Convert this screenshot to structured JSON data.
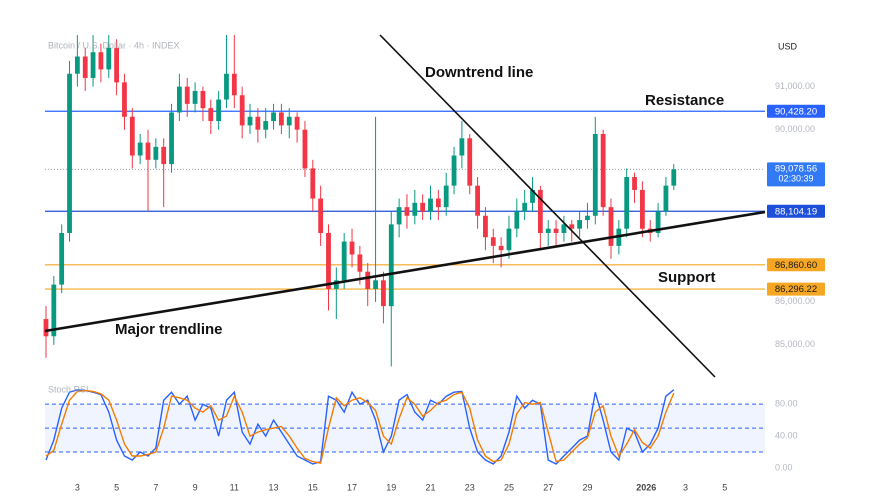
{
  "chart_data": [
    {
      "type": "candlestick",
      "title": "Bitcoin / U.S. Dollar · 4h · INDEX",
      "y_axis_label": "USD",
      "annotations": [
        "Downtrend line",
        "Resistance",
        "Support",
        "Major trendline"
      ],
      "up_color": "#089981",
      "down_color": "#f23645",
      "grid": false,
      "x": [
        1.4,
        1.8,
        2.2,
        2.6,
        3,
        3.4,
        3.8,
        4.2,
        4.6,
        5,
        5.4,
        5.8,
        6.2,
        6.6,
        7,
        7.4,
        7.8,
        8.2,
        8.6,
        9,
        9.4,
        9.8,
        10.2,
        10.6,
        11,
        11.4,
        11.8,
        12.2,
        12.6,
        13,
        13.4,
        13.8,
        14.2,
        14.6,
        15,
        15.4,
        15.8,
        16.2,
        16.6,
        17,
        17.4,
        17.8,
        18.2,
        18.6,
        19,
        19.4,
        19.8,
        20.2,
        20.6,
        21,
        21.4,
        21.8,
        22.2,
        22.6,
        23,
        23.4,
        23.8,
        24.2,
        24.6,
        25,
        25.4,
        25.8,
        26.2,
        26.6,
        27,
        27.4,
        27.8,
        28.2,
        28.6,
        29,
        29.4,
        29.8,
        30.2,
        30.6,
        31,
        31.4,
        31.8,
        32.2,
        32.6,
        33,
        33.4
      ],
      "open": [
        85600,
        85200,
        86400,
        87600,
        91300,
        91700,
        91200,
        91800,
        91400,
        91900,
        91100,
        90300,
        89400,
        89700,
        89300,
        89600,
        89200,
        90400,
        91000,
        90600,
        90900,
        90500,
        90200,
        90700,
        91300,
        90800,
        90100,
        90300,
        90000,
        90200,
        90400,
        90100,
        90300,
        90000,
        89100,
        88400,
        87600,
        86300,
        86500,
        87400,
        87100,
        86700,
        86300,
        86500,
        85900,
        87800,
        88200,
        88000,
        88300,
        88100,
        88400,
        88200,
        88700,
        89400,
        89800,
        88700,
        88000,
        87500,
        87300,
        87200,
        87700,
        88100,
        88300,
        88600,
        87600,
        87700,
        87600,
        87800,
        87700,
        87900,
        88000,
        89900,
        88200,
        87300,
        87700,
        88900,
        88600,
        87700,
        87600,
        88100,
        88700
      ],
      "high": [
        85900,
        86600,
        87800,
        91600,
        92200,
        91900,
        92200,
        92000,
        92200,
        92100,
        91300,
        90500,
        89900,
        90000,
        89800,
        89800,
        90600,
        91300,
        91200,
        91100,
        91000,
        90700,
        90900,
        92200,
        92200,
        91000,
        90600,
        90500,
        90500,
        90600,
        90600,
        90500,
        90400,
        90200,
        89300,
        88700,
        87800,
        86800,
        87600,
        87700,
        87300,
        86900,
        90300,
        86700,
        88100,
        88400,
        88500,
        88600,
        88500,
        88700,
        88600,
        89000,
        89600,
        90200,
        89900,
        88900,
        88200,
        87700,
        87500,
        88000,
        88400,
        88600,
        88900,
        88700,
        87900,
        87900,
        88000,
        87900,
        88100,
        88300,
        90300,
        90000,
        88400,
        87900,
        89100,
        89000,
        88800,
        87900,
        88300,
        88900,
        89200
      ],
      "low": [
        84700,
        85000,
        86200,
        87400,
        91000,
        90900,
        91000,
        91100,
        91200,
        90800,
        90000,
        89100,
        89200,
        88100,
        89100,
        88200,
        89000,
        90200,
        90300,
        90400,
        90200,
        89900,
        90000,
        90500,
        90500,
        89800,
        89900,
        89700,
        89800,
        90000,
        89900,
        89800,
        89700,
        88900,
        88100,
        87300,
        85800,
        85600,
        86300,
        86800,
        86400,
        85900,
        86000,
        85500,
        84500,
        87500,
        87700,
        87800,
        87900,
        87900,
        87900,
        88000,
        88500,
        89100,
        88500,
        87700,
        87200,
        86900,
        86800,
        87000,
        87500,
        87900,
        88100,
        87200,
        87300,
        87300,
        87400,
        87400,
        87500,
        87700,
        87800,
        88000,
        87000,
        87100,
        87500,
        88300,
        87500,
        87400,
        87500,
        88000,
        88600
      ],
      "close": [
        85200,
        86400,
        87600,
        91300,
        91700,
        91200,
        91800,
        91400,
        91900,
        91100,
        90300,
        89400,
        89700,
        89300,
        89600,
        89200,
        90400,
        91000,
        90600,
        90900,
        90500,
        90200,
        90700,
        91300,
        90800,
        90100,
        90300,
        90000,
        90200,
        90400,
        90100,
        90300,
        90000,
        89100,
        88400,
        87600,
        86300,
        86500,
        87400,
        87100,
        86700,
        86300,
        86500,
        85900,
        87800,
        88200,
        88000,
        88300,
        88100,
        88400,
        88200,
        88700,
        89400,
        89800,
        88700,
        88000,
        87500,
        87300,
        87200,
        87700,
        88100,
        88300,
        88600,
        87600,
        87700,
        87600,
        87800,
        87700,
        87900,
        88000,
        89900,
        88200,
        87300,
        87700,
        88900,
        88600,
        87700,
        87600,
        88100,
        88700,
        89078.56
      ],
      "xlim": [
        1.35,
        38.05
      ],
      "xticks": [
        3,
        5,
        7,
        9,
        11,
        13,
        15,
        17,
        19,
        21,
        23,
        25,
        27,
        29,
        {
          "value": 32,
          "label": "2026"
        },
        {
          "value": 34,
          "label": "3"
        },
        {
          "value": 36,
          "label": "5"
        }
      ],
      "ylim": [
        84300,
        92200
      ],
      "yticks": [
        {
          "value": 91000,
          "label": "91,000.00"
        },
        {
          "value": 90000,
          "label": "90,000.00"
        },
        {
          "value": 86000,
          "label": "86,000.00"
        },
        {
          "value": 85000,
          "label": "85,000.00"
        }
      ],
      "levels": [
        {
          "value": 90428.2,
          "label": "90,428.20",
          "color": "#2962ff",
          "text_color": "#ffffff"
        },
        {
          "value": 88104.19,
          "label": "88,104.19",
          "color": "#1e4fd8",
          "text_color": "#ffffff"
        },
        {
          "value": 86860.6,
          "label": "86,860.60",
          "color": "#f5a623",
          "text_color": "#1a1a1a"
        },
        {
          "value": 86296.22,
          "label": "86,296.22",
          "color": "#f5a623",
          "text_color": "#1a1a1a"
        }
      ],
      "last_price": {
        "value": 89078.56,
        "label": "89,078.56",
        "countdown": "02:30:39",
        "color": "#3179f5"
      }
    },
    {
      "type": "line",
      "title": "Stoch RSI",
      "series": [
        {
          "color": "#2962ff",
          "values": [
            10,
            35,
            75,
            95,
            98,
            97,
            95,
            92,
            70,
            35,
            15,
            10,
            20,
            15,
            25,
            85,
            95,
            80,
            90,
            60,
            80,
            75,
            40,
            85,
            95,
            45,
            30,
            55,
            40,
            60,
            45,
            30,
            15,
            10,
            5,
            8,
            90,
            85,
            70,
            95,
            80,
            85,
            60,
            20,
            40,
            85,
            92,
            70,
            60,
            85,
            80,
            90,
            95,
            96,
            50,
            20,
            10,
            5,
            15,
            45,
            90,
            75,
            85,
            80,
            10,
            5,
            15,
            25,
            35,
            40,
            95,
            60,
            20,
            10,
            50,
            45,
            20,
            30,
            50,
            90,
            98
          ]
        },
        {
          "color": "#f57c00",
          "values": [
            15,
            22,
            55,
            85,
            96,
            97,
            96,
            93,
            85,
            60,
            30,
            15,
            15,
            17,
            20,
            50,
            90,
            88,
            85,
            75,
            70,
            78,
            60,
            65,
            90,
            70,
            40,
            45,
            48,
            50,
            52,
            40,
            25,
            12,
            8,
            6,
            50,
            88,
            78,
            85,
            88,
            82,
            72,
            40,
            30,
            62,
            88,
            80,
            65,
            72,
            82,
            85,
            92,
            95,
            75,
            35,
            15,
            8,
            10,
            30,
            68,
            82,
            80,
            82,
            45,
            8,
            10,
            20,
            30,
            38,
            70,
            78,
            40,
            15,
            30,
            48,
            32,
            25,
            40,
            70,
            94
          ]
        }
      ],
      "ylim": [
        -5,
        104
      ],
      "yticks": [
        {
          "value": 80,
          "label": "80.00"
        },
        {
          "value": 40,
          "label": "40.00"
        },
        {
          "value": 0,
          "label": "0.00"
        }
      ],
      "reference_lines": [
        80,
        50,
        20
      ]
    }
  ]
}
